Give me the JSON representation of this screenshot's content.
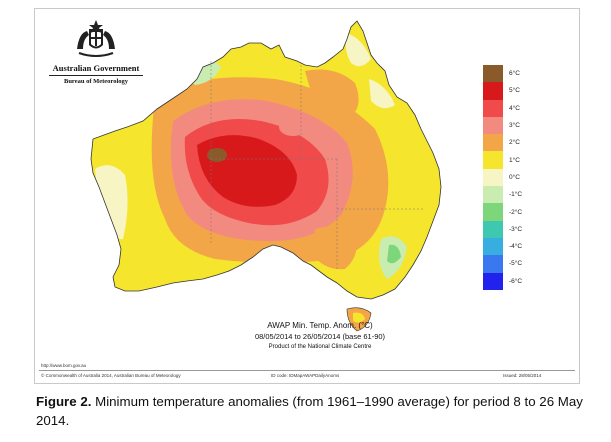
{
  "logo": {
    "government": "Australian Government",
    "bureau": "Bureau of Meteorology",
    "crest_icon": "australian-coat-of-arms"
  },
  "map": {
    "title_line1": "AWAP Min. Temp. Anom. (°C)",
    "title_line2": "08/05/2014 to 26/05/2014 (base 61-90)",
    "title_line3": "Product of the National Climate Centre",
    "url": "http://www.bom.gov.au",
    "copyright": "© Commonwealth of Australia 2014, Australian Bureau of Meteorology",
    "id_code": "ID code: IDMapAWAPDailyAnoms",
    "issued": "Issued: 28/05/2014"
  },
  "legend": [
    {
      "label": "6°C",
      "color": "#8b5a2b"
    },
    {
      "label": "5°C",
      "color": "#d7191c"
    },
    {
      "label": "4°C",
      "color": "#f04a4a"
    },
    {
      "label": "3°C",
      "color": "#f28a80"
    },
    {
      "label": "2°C",
      "color": "#f2a648"
    },
    {
      "label": "1°C",
      "color": "#f5e52c"
    },
    {
      "label": "0°C",
      "color": "#f8f5c4"
    },
    {
      "label": "-1°C",
      "color": "#c9ecb0"
    },
    {
      "label": "-2°C",
      "color": "#7ed67a"
    },
    {
      "label": "-3°C",
      "color": "#3fc8b0"
    },
    {
      "label": "-4°C",
      "color": "#38aee0"
    },
    {
      "label": "-5°C",
      "color": "#3a78f0"
    },
    {
      "label": "-6°C",
      "color": "#2222ee"
    }
  ],
  "caption": {
    "label": "Figure 2.",
    "text": " Minimum temperature anomalies (from 1961–1990 average) for period 8 to 26 May 2014."
  }
}
